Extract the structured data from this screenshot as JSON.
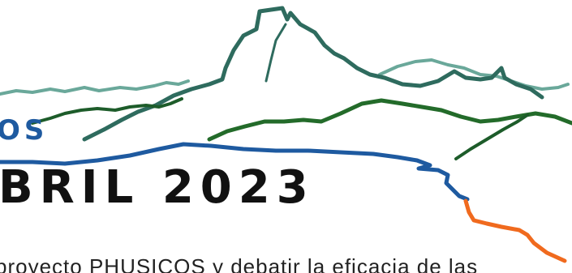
{
  "banner": {
    "cut_word": "OS",
    "headline": "BRIL 2023",
    "body_fragment": "proyecto PHUSICOS y debatir la eficacia de las"
  },
  "colors": {
    "headline": "#111111",
    "cut_word": "#1e5aa0",
    "line_light_teal": "#6aa89a",
    "line_dark_teal": "#2e6b5e",
    "line_dark_green": "#1d5c2a",
    "line_green": "#236b2a",
    "line_blue": "#1e5aa0",
    "line_orange": "#f06a1e"
  }
}
